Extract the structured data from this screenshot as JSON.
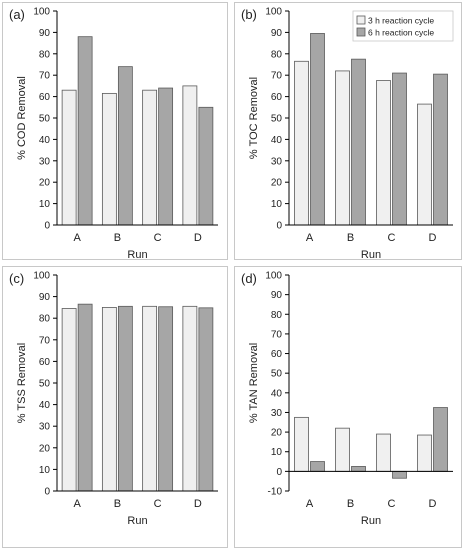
{
  "chart_data": [
    {
      "type": "bar",
      "panel_label": "(a)",
      "categories": [
        "A",
        "B",
        "C",
        "D"
      ],
      "series": [
        {
          "values": [
            63,
            61.5,
            63,
            65
          ]
        },
        {
          "values": [
            88,
            74,
            64,
            55
          ]
        }
      ],
      "xlabel": "Run",
      "ylabel": "% COD Removal",
      "ylim": [
        0,
        100
      ],
      "yticks": [
        "0",
        "10",
        "20",
        "30",
        "40",
        "50",
        "60",
        "70",
        "80",
        "90",
        "100"
      ],
      "legend": null
    },
    {
      "type": "bar",
      "panel_label": "(b)",
      "categories": [
        "A",
        "B",
        "C",
        "D"
      ],
      "series": [
        {
          "name": "3 h reaction cycle",
          "values": [
            76.5,
            72,
            67.5,
            56.5
          ]
        },
        {
          "name": "6 h reaction cycle",
          "values": [
            89.5,
            77.5,
            71,
            70.5
          ]
        }
      ],
      "xlabel": "Run",
      "ylabel": "% TOC Removal",
      "ylim": [
        0,
        100
      ],
      "yticks": [
        "0",
        "10",
        "20",
        "30",
        "40",
        "50",
        "60",
        "70",
        "80",
        "90",
        "100"
      ],
      "legend": "top-right"
    },
    {
      "type": "bar",
      "panel_label": "(c)",
      "categories": [
        "A",
        "B",
        "C",
        "D"
      ],
      "series": [
        {
          "values": [
            84.5,
            85,
            85.5,
            85.5
          ]
        },
        {
          "values": [
            86.5,
            85.5,
            85.3,
            84.8
          ]
        }
      ],
      "xlabel": "Run",
      "ylabel": "% TSS Removal",
      "ylim": [
        0,
        100
      ],
      "yticks": [
        "0",
        "10",
        "20",
        "30",
        "40",
        "50",
        "60",
        "70",
        "80",
        "90",
        "100"
      ],
      "legend": null
    },
    {
      "type": "bar",
      "panel_label": "(d)",
      "categories": [
        "A",
        "B",
        "C",
        "D"
      ],
      "series": [
        {
          "values": [
            27.5,
            22,
            19,
            18.5
          ]
        },
        {
          "values": [
            5,
            2.5,
            -3.5,
            32.5
          ]
        }
      ],
      "xlabel": "Run",
      "ylabel": "% TAN Removal",
      "ylim": [
        -10,
        100
      ],
      "yticks": [
        "-10",
        "0",
        "10",
        "20",
        "30",
        "40",
        "50",
        "60",
        "70",
        "80",
        "90",
        "100"
      ],
      "legend": null
    }
  ],
  "colors": {
    "series_3h": "#f0f0f0",
    "series_6h": "#a6a6a6",
    "bar_stroke": "#5a5a5a",
    "axis": "#000000"
  }
}
